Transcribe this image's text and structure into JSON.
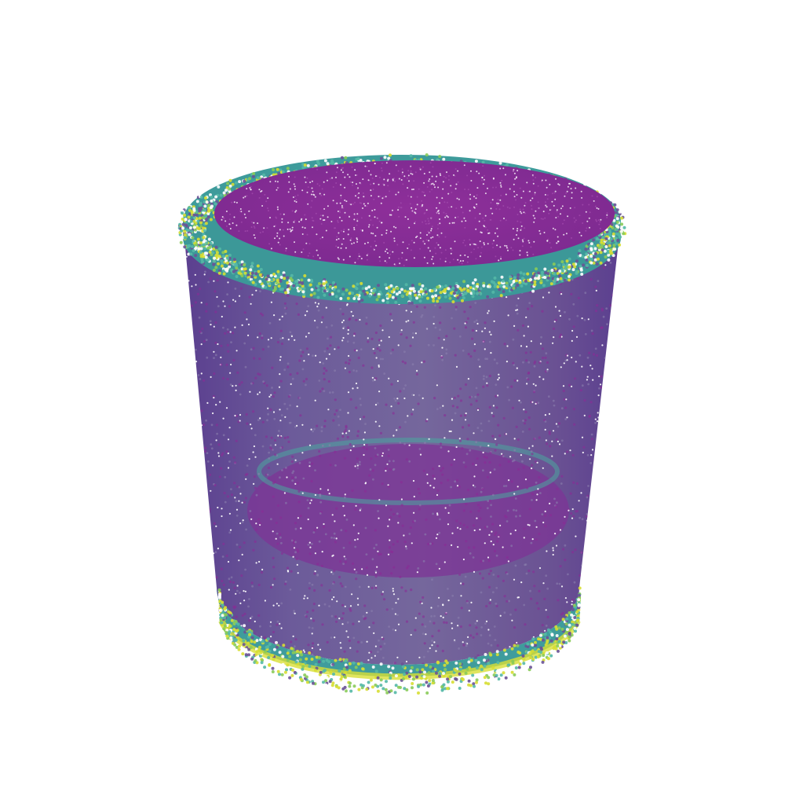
{
  "scene": {
    "object": "hollow-cylinder-point-cloud",
    "background_color": "#ffffff",
    "colors": {
      "core": "#8a2b96",
      "body": "#6a5396",
      "teal": "#3b9c9a",
      "cyan": "#54b8a6",
      "yellow": "#d7de33",
      "green": "#8acb59"
    }
  }
}
